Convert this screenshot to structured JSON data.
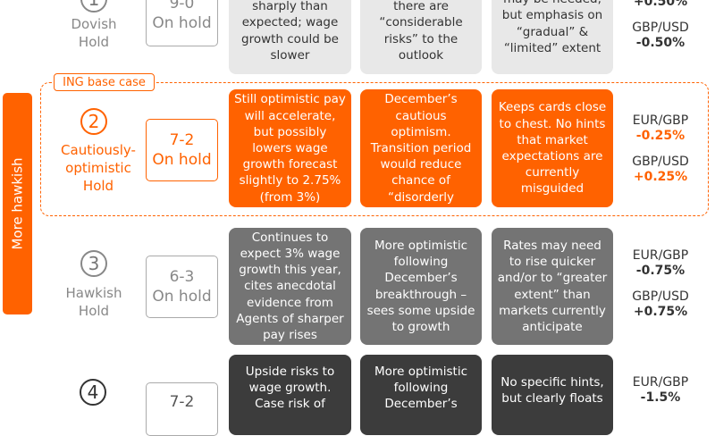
{
  "side_label": "More hawkish",
  "base_case_tag": "ING base case",
  "colors": {
    "accent": "#ff6200",
    "light_cell": "#e8e8e8",
    "mid_cell": "#747474",
    "dark_cell": "#3c3c3c"
  },
  "scenarios": [
    {
      "number": "1",
      "name_lines": [
        "Dovish",
        "Hold"
      ],
      "vote_lines": [
        "9-0",
        "On hold"
      ],
      "cells": [
        "sharply than expected; wage growth could be slower",
        "there are “considerable risks” to the outlook",
        "may be needed, but emphasis on “gradual” & “limited” extent"
      ],
      "fx": [
        {
          "pair": "",
          "value": "+0.50%"
        },
        {
          "pair": "GBP/USD",
          "value": "-0.50%"
        }
      ]
    },
    {
      "number": "2",
      "name_lines": [
        "Cautiously-",
        "optimistic",
        "Hold"
      ],
      "vote_lines": [
        "7-2",
        "On hold"
      ],
      "cells": [
        "Still optimistic pay will accelerate, but possibly lowers wage growth forecast slightly to 2.75% (from 3%)",
        "Echoes December’s cautious optimism. Transition period would reduce chance of “disorderly Brexit”",
        "Keeps cards close to chest. No hints that market expectations are currently misguided"
      ],
      "fx": [
        {
          "pair": "EUR/GBP",
          "value": "-0.25%"
        },
        {
          "pair": "GBP/USD",
          "value": "+0.25%"
        }
      ]
    },
    {
      "number": "3",
      "name_lines": [
        "Hawkish",
        "Hold"
      ],
      "vote_lines": [
        "6-3",
        "On hold"
      ],
      "cells": [
        "Continues to expect 3% wage growth this year, cites anecdotal evidence from Agents of sharper pay rises",
        "More optimistic following December’s breakthrough – sees some upside to growth",
        "Rates may need to rise quicker and/or to “greater extent” than markets currently anticipate"
      ],
      "fx": [
        {
          "pair": "EUR/GBP",
          "value": "-0.75%"
        },
        {
          "pair": "GBP/USD",
          "value": "+0.75%"
        }
      ]
    },
    {
      "number": "4",
      "name_lines": [],
      "vote_lines": [
        "7-2"
      ],
      "cells": [
        "Upside risks to wage growth. Case risk of",
        "More optimistic following December’s",
        "No specific hints, but clearly floats"
      ],
      "fx": [
        {
          "pair": "EUR/GBP",
          "value": "-1.5%"
        }
      ]
    }
  ]
}
